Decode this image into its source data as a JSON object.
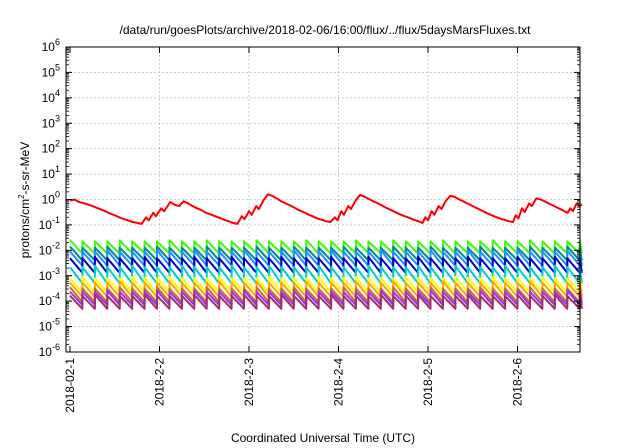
{
  "chart_data": {
    "type": "line",
    "title": "/data/run/goesPlots/archive/2018-02-06/16:00/flux/../flux/5daysMarsFluxes.txt",
    "xlabel": "Coordinated Universal Time (UTC)",
    "ylabel": "protons/cm²-s-sr-MeV",
    "ylabel_parts": {
      "before": "protons/cm",
      "sup": "2",
      "after": "-s-sr-MeV"
    },
    "y_scale": "log",
    "ylim": [
      1e-06,
      1000000.0
    ],
    "y_ticks": [
      {
        "base": "10",
        "exp": "-6",
        "value": 1e-06
      },
      {
        "base": "10",
        "exp": "-5",
        "value": 1e-05
      },
      {
        "base": "10",
        "exp": "-4",
        "value": 0.0001
      },
      {
        "base": "10",
        "exp": "-3",
        "value": 0.001
      },
      {
        "base": "10",
        "exp": "-2",
        "value": 0.01
      },
      {
        "base": "10",
        "exp": "-1",
        "value": 0.1
      },
      {
        "base": "10",
        "exp": "0",
        "value": 1
      },
      {
        "base": "10",
        "exp": "1",
        "value": 10
      },
      {
        "base": "10",
        "exp": "2",
        "value": 100
      },
      {
        "base": "10",
        "exp": "3",
        "value": 1000
      },
      {
        "base": "10",
        "exp": "4",
        "value": 10000
      },
      {
        "base": "10",
        "exp": "5",
        "value": 100000
      },
      {
        "base": "10",
        "exp": "6",
        "value": 1000000
      }
    ],
    "x_ticks": [
      "2018-02-1",
      "2018-2-2",
      "2018-2-3",
      "2018-2-4",
      "2018-2-5",
      "2018-2-6"
    ],
    "x_tick_days": [
      0,
      1,
      2,
      3,
      4,
      5
    ],
    "xlim_days": [
      0,
      5.72
    ],
    "grid": true,
    "legend": "none",
    "series": [
      {
        "color": "#ff0000",
        "points": [
          [
            0.0,
            0.9
          ],
          [
            0.05,
            1.0
          ],
          [
            0.1,
            0.8
          ],
          [
            0.15,
            0.72
          ],
          [
            0.2,
            0.64
          ],
          [
            0.25,
            0.55
          ],
          [
            0.3,
            0.47
          ],
          [
            0.35,
            0.4
          ],
          [
            0.4,
            0.34
          ],
          [
            0.45,
            0.28
          ],
          [
            0.5,
            0.24
          ],
          [
            0.55,
            0.2
          ],
          [
            0.6,
            0.17
          ],
          [
            0.65,
            0.15
          ],
          [
            0.7,
            0.13
          ],
          [
            0.75,
            0.12
          ],
          [
            0.8,
            0.11
          ],
          [
            0.85,
            0.2
          ],
          [
            0.88,
            0.15
          ],
          [
            0.93,
            0.3
          ],
          [
            0.96,
            0.22
          ],
          [
            1.02,
            0.45
          ],
          [
            1.05,
            0.34
          ],
          [
            1.12,
            0.8
          ],
          [
            1.17,
            0.62
          ],
          [
            1.22,
            0.55
          ],
          [
            1.27,
            0.85
          ],
          [
            1.32,
            0.7
          ],
          [
            1.37,
            0.55
          ],
          [
            1.42,
            0.45
          ],
          [
            1.47,
            0.38
          ],
          [
            1.52,
            0.3
          ],
          [
            1.57,
            0.26
          ],
          [
            1.62,
            0.22
          ],
          [
            1.67,
            0.19
          ],
          [
            1.72,
            0.16
          ],
          [
            1.77,
            0.14
          ],
          [
            1.82,
            0.12
          ],
          [
            1.87,
            0.11
          ],
          [
            1.92,
            0.22
          ],
          [
            1.95,
            0.17
          ],
          [
            2.0,
            0.35
          ],
          [
            2.03,
            0.25
          ],
          [
            2.08,
            0.55
          ],
          [
            2.11,
            0.42
          ],
          [
            2.16,
            0.9
          ],
          [
            2.21,
            1.6
          ],
          [
            2.26,
            1.4
          ],
          [
            2.31,
            1.1
          ],
          [
            2.36,
            0.85
          ],
          [
            2.41,
            0.7
          ],
          [
            2.46,
            0.58
          ],
          [
            2.51,
            0.47
          ],
          [
            2.56,
            0.38
          ],
          [
            2.61,
            0.32
          ],
          [
            2.66,
            0.26
          ],
          [
            2.71,
            0.22
          ],
          [
            2.76,
            0.18
          ],
          [
            2.81,
            0.16
          ],
          [
            2.86,
            0.14
          ],
          [
            2.91,
            0.13
          ],
          [
            2.96,
            0.2
          ],
          [
            2.99,
            0.15
          ],
          [
            3.03,
            0.35
          ],
          [
            3.06,
            0.25
          ],
          [
            3.11,
            0.55
          ],
          [
            3.14,
            0.42
          ],
          [
            3.19,
            0.9
          ],
          [
            3.24,
            1.5
          ],
          [
            3.29,
            1.3
          ],
          [
            3.34,
            1.05
          ],
          [
            3.39,
            0.85
          ],
          [
            3.44,
            0.7
          ],
          [
            3.49,
            0.57
          ],
          [
            3.54,
            0.46
          ],
          [
            3.59,
            0.38
          ],
          [
            3.64,
            0.31
          ],
          [
            3.69,
            0.26
          ],
          [
            3.74,
            0.22
          ],
          [
            3.79,
            0.19
          ],
          [
            3.84,
            0.16
          ],
          [
            3.89,
            0.14
          ],
          [
            3.94,
            0.12
          ],
          [
            3.97,
            0.2
          ],
          [
            4.0,
            0.15
          ],
          [
            4.04,
            0.35
          ],
          [
            4.07,
            0.25
          ],
          [
            4.12,
            0.55
          ],
          [
            4.15,
            0.42
          ],
          [
            4.2,
            0.9
          ],
          [
            4.25,
            1.4
          ],
          [
            4.3,
            1.25
          ],
          [
            4.35,
            1.0
          ],
          [
            4.4,
            0.82
          ],
          [
            4.45,
            0.67
          ],
          [
            4.5,
            0.55
          ],
          [
            4.55,
            0.45
          ],
          [
            4.6,
            0.37
          ],
          [
            4.65,
            0.3
          ],
          [
            4.7,
            0.25
          ],
          [
            4.75,
            0.21
          ],
          [
            4.8,
            0.18
          ],
          [
            4.85,
            0.16
          ],
          [
            4.9,
            0.14
          ],
          [
            4.95,
            0.13
          ],
          [
            4.98,
            0.24
          ],
          [
            5.01,
            0.18
          ],
          [
            5.05,
            0.45
          ],
          [
            5.08,
            0.32
          ],
          [
            5.13,
            0.7
          ],
          [
            5.16,
            0.55
          ],
          [
            5.21,
            1.1
          ],
          [
            5.26,
            1.0
          ],
          [
            5.31,
            0.82
          ],
          [
            5.36,
            0.67
          ],
          [
            5.41,
            0.55
          ],
          [
            5.46,
            0.45
          ],
          [
            5.51,
            0.37
          ],
          [
            5.56,
            0.3
          ],
          [
            5.59,
            0.45
          ],
          [
            5.62,
            0.35
          ],
          [
            5.66,
            0.7
          ],
          [
            5.69,
            0.55
          ],
          [
            5.72,
            0.65
          ]
        ]
      },
      {
        "color": "#33ff00",
        "low": 0.0075,
        "high": 0.025
      },
      {
        "color": "#008b8b",
        "low": 0.004,
        "high": 0.014
      },
      {
        "color": "#1e90ff",
        "low": 0.0025,
        "high": 0.01
      },
      {
        "color": "#0000cd",
        "low": 0.0013,
        "high": 0.0055
      },
      {
        "color": "#00ced1",
        "low": 0.0005,
        "high": 0.0025
      },
      {
        "color": "#ffff00",
        "low": 0.00022,
        "high": 0.0009
      },
      {
        "color": "#ffa500",
        "low": 0.00015,
        "high": 0.0006
      },
      {
        "color": "#d2691e",
        "low": 9e-05,
        "high": 0.00035
      },
      {
        "color": "#9b30ff",
        "low": 7e-05,
        "high": 0.00026
      },
      {
        "color": "#a0306b",
        "low": 5e-05,
        "high": 0.00018
      }
    ]
  }
}
